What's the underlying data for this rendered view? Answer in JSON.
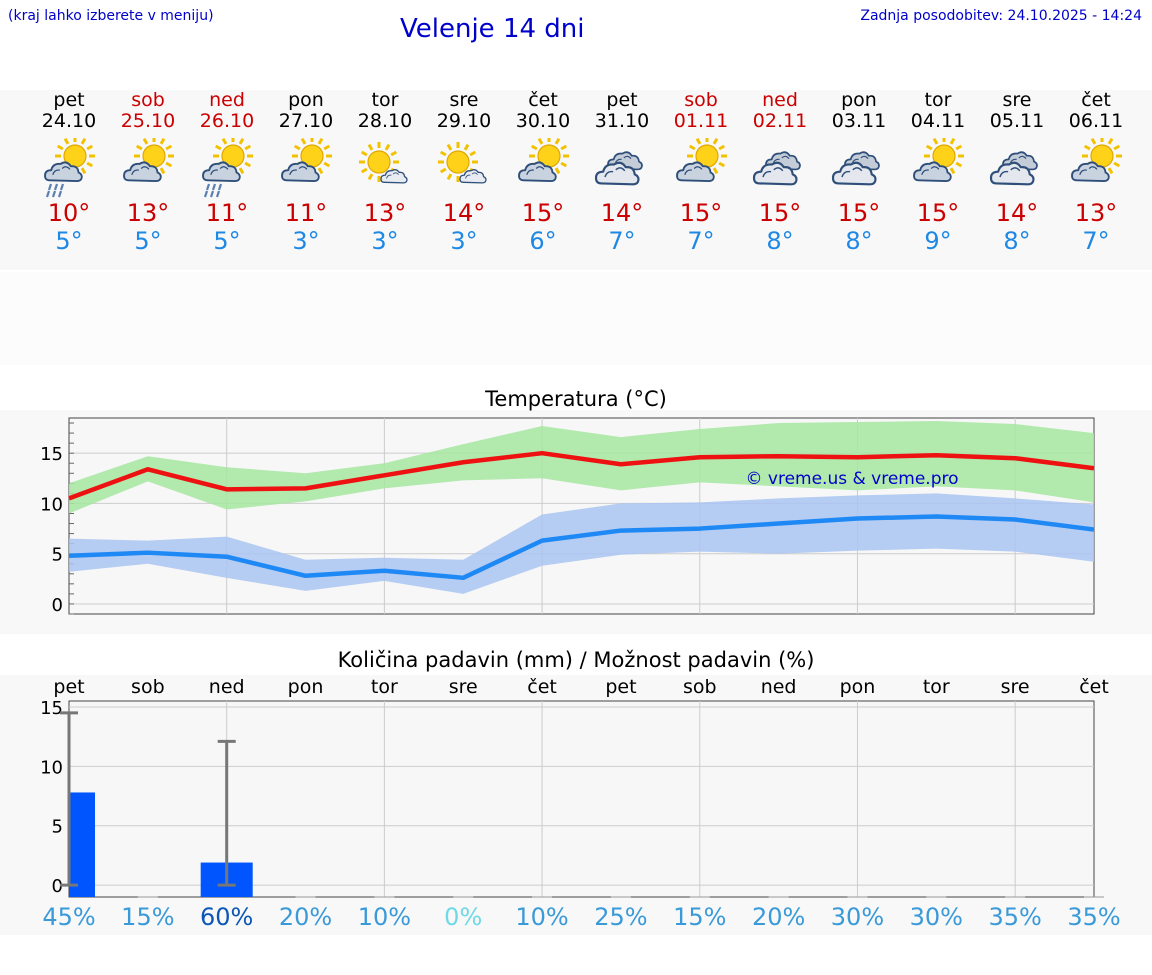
{
  "header": {
    "menu_hint": "(kraj lahko izberete v meniju)",
    "title": "Velenje 14 dni",
    "last_update": "Zadnja posodobitev: 24.10.2025 - 14:24"
  },
  "days": [
    {
      "name": "pet",
      "date": "24.10",
      "weekend": false,
      "icon": "sun-cloud-rain-icon",
      "tmax": "10°",
      "tmin": "5°"
    },
    {
      "name": "sob",
      "date": "25.10",
      "weekend": true,
      "icon": "sun-cloud-icon",
      "tmax": "13°",
      "tmin": "5°"
    },
    {
      "name": "ned",
      "date": "26.10",
      "weekend": true,
      "icon": "sun-cloud-rain-icon",
      "tmax": "11°",
      "tmin": "5°"
    },
    {
      "name": "pon",
      "date": "27.10",
      "weekend": false,
      "icon": "sun-cloud-icon",
      "tmax": "11°",
      "tmin": "3°"
    },
    {
      "name": "tor",
      "date": "28.10",
      "weekend": false,
      "icon": "sun-small-cloud-icon",
      "tmax": "13°",
      "tmin": "3°"
    },
    {
      "name": "sre",
      "date": "29.10",
      "weekend": false,
      "icon": "sun-small-cloud-icon",
      "tmax": "14°",
      "tmin": "3°"
    },
    {
      "name": "čet",
      "date": "30.10",
      "weekend": false,
      "icon": "sun-cloud-icon",
      "tmax": "15°",
      "tmin": "6°"
    },
    {
      "name": "pet",
      "date": "31.10",
      "weekend": false,
      "icon": "cloudy-icon",
      "tmax": "14°",
      "tmin": "7°"
    },
    {
      "name": "sob",
      "date": "01.11",
      "weekend": true,
      "icon": "sun-cloud-icon",
      "tmax": "15°",
      "tmin": "7°"
    },
    {
      "name": "ned",
      "date": "02.11",
      "weekend": true,
      "icon": "cloudy-icon",
      "tmax": "15°",
      "tmin": "8°"
    },
    {
      "name": "pon",
      "date": "03.11",
      "weekend": false,
      "icon": "cloudy-icon",
      "tmax": "15°",
      "tmin": "8°"
    },
    {
      "name": "tor",
      "date": "04.11",
      "weekend": false,
      "icon": "sun-cloud-icon",
      "tmax": "15°",
      "tmin": "9°"
    },
    {
      "name": "sre",
      "date": "05.11",
      "weekend": false,
      "icon": "cloudy-icon",
      "tmax": "14°",
      "tmin": "8°"
    },
    {
      "name": "čet",
      "date": "06.11",
      "weekend": false,
      "icon": "sun-cloud-icon",
      "tmax": "13°",
      "tmin": "7°"
    }
  ],
  "colors": {
    "title_blue": "#0000cc",
    "weekend_red": "#cc0000",
    "tmax_line": "#ee1111",
    "tmin_line": "#1e88f5",
    "tmax_band": "#a6e6a0",
    "tmin_band": "#a9c4f2",
    "rain_bar": "#0055ff",
    "pct_low": "#3a9ad9",
    "pct_high": "#0c56b8",
    "pct_zero": "#6fd9e6"
  },
  "chart_data": [
    {
      "type": "line",
      "title": "Temperatura (°C)",
      "watermark": "© vreme.us & vreme.pro",
      "ylim": [
        -1,
        18.5
      ],
      "yticks": [
        0,
        5,
        10,
        15
      ],
      "x": [
        0,
        1,
        2,
        3,
        4,
        5,
        6,
        7,
        8,
        9,
        10,
        11,
        12,
        13
      ],
      "series": [
        {
          "name": "max",
          "values": [
            10.5,
            13.4,
            11.4,
            11.5,
            12.8,
            14.1,
            15.0,
            13.9,
            14.6,
            14.7,
            14.6,
            14.8,
            14.5,
            13.5
          ]
        },
        {
          "name": "max_low",
          "values": [
            9.0,
            12.2,
            9.4,
            10.2,
            11.5,
            12.3,
            12.5,
            11.3,
            12.1,
            11.7,
            11.3,
            11.7,
            11.3,
            10.1
          ]
        },
        {
          "name": "max_high",
          "values": [
            12.0,
            14.7,
            13.6,
            13.0,
            14.0,
            15.9,
            17.7,
            16.6,
            17.4,
            18.0,
            18.1,
            18.2,
            17.9,
            17.0
          ]
        },
        {
          "name": "min",
          "values": [
            4.8,
            5.1,
            4.7,
            2.8,
            3.3,
            2.6,
            6.3,
            7.3,
            7.5,
            8.0,
            8.5,
            8.7,
            8.4,
            7.4
          ]
        },
        {
          "name": "min_low",
          "values": [
            3.2,
            4.0,
            2.6,
            1.3,
            2.3,
            1.0,
            3.8,
            4.9,
            5.2,
            5.0,
            5.3,
            5.5,
            5.2,
            4.2
          ]
        },
        {
          "name": "min_high",
          "values": [
            6.5,
            6.3,
            6.7,
            4.4,
            4.6,
            4.4,
            8.9,
            10.0,
            10.1,
            10.5,
            10.8,
            11.0,
            10.5,
            9.9
          ]
        }
      ]
    },
    {
      "type": "bar",
      "title": "Količina padavin (mm) / Možnost padavin (%)",
      "categories": [
        "pet",
        "sob",
        "ned",
        "pon",
        "tor",
        "sre",
        "čet",
        "pet",
        "sob",
        "ned",
        "pon",
        "tor",
        "sre",
        "čet"
      ],
      "values": [
        7.8,
        0,
        1.9,
        0,
        0,
        0,
        0,
        0,
        0,
        0,
        0,
        0,
        0,
        0
      ],
      "error_max": [
        14.5,
        0,
        12.1,
        0,
        0,
        0,
        0,
        0,
        0,
        0,
        0,
        0,
        0,
        0
      ],
      "ylim": [
        -1,
        15.5
      ],
      "yticks": [
        0,
        5,
        10,
        15
      ],
      "probability": [
        "45%",
        "15%",
        "60%",
        "20%",
        "10%",
        "0%",
        "10%",
        "25%",
        "15%",
        "20%",
        "30%",
        "30%",
        "35%",
        "35%"
      ]
    }
  ]
}
